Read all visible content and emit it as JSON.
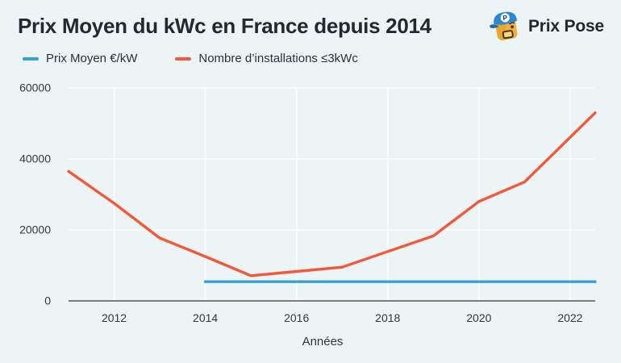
{
  "header": {
    "title": "Prix Moyen du kWc en France depuis 2014",
    "logo": {
      "text": "Prix Pose",
      "badge_letter": "P"
    }
  },
  "legend": [
    {
      "label": "Prix Moyen €/kW",
      "color": "#35a0da"
    },
    {
      "label": "Nombre d’installations ≤3kWc",
      "color": "#f4583a"
    }
  ],
  "chart_data": {
    "type": "line",
    "title": "Prix Moyen du kWc en France depuis 2014",
    "xlabel": "Années",
    "ylabel": "",
    "xlim": [
      2011,
      2022.55
    ],
    "ylim": [
      0,
      60000
    ],
    "x_ticks": [
      2012,
      2014,
      2016,
      2018,
      2020,
      2022
    ],
    "y_ticks": [
      0,
      20000,
      40000,
      60000
    ],
    "grid": true,
    "legend_position": "top-left",
    "background": "#ecf4f6",
    "gridline_color": "#ffffff",
    "axis_line_color": "#51575c",
    "tick_text_color": "#34383b",
    "series": [
      {
        "name": "Prix Moyen €/kW",
        "color": "#35a0da",
        "x": [
          2014,
          2022.55
        ],
        "values": [
          5400,
          5400
        ]
      },
      {
        "name": "Nombre d’installations ≤3kWc",
        "color": "#f4583a",
        "x": [
          2011,
          2012,
          2013,
          2014,
          2015,
          2016,
          2017,
          2018,
          2019,
          2020,
          2021,
          2022.55
        ],
        "values": [
          36500,
          27500,
          17700,
          12500,
          7100,
          8300,
          9500,
          13900,
          18300,
          28000,
          33500,
          53000
        ]
      }
    ]
  }
}
